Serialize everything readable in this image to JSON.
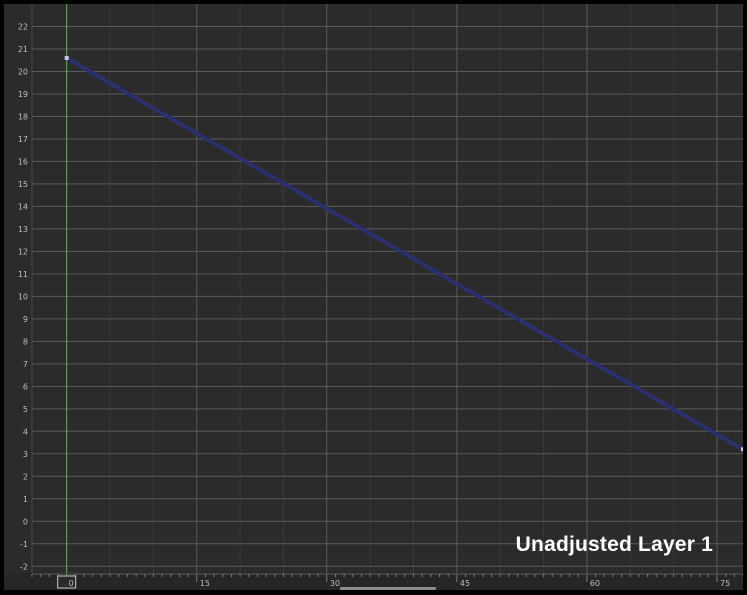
{
  "overlay_label": "Unadjusted Layer 1",
  "colors": {
    "background": "#2b2b2b",
    "grid_major": "#5a5a5a",
    "grid_minor": "#3a3a3a",
    "curve": "#2a2f6e",
    "current_frame": "#56c245",
    "key": "#c8c8e0"
  },
  "chart_data": {
    "type": "line",
    "title": "",
    "xlabel": "",
    "ylabel": "",
    "xlim": [
      -4,
      78
    ],
    "ylim": [
      -2.3,
      23
    ],
    "x_ticks": [
      15,
      30,
      45,
      60,
      75
    ],
    "y_ticks": [
      -2,
      -1,
      0,
      1,
      2,
      3,
      4,
      5,
      6,
      7,
      8,
      9,
      10,
      11,
      12,
      13,
      14,
      15,
      16,
      17,
      18,
      19,
      20,
      21,
      22
    ],
    "current_frame": 0,
    "current_frame_label": "0",
    "grid": true,
    "series": [
      {
        "x": [
          0,
          78
        ],
        "y": [
          20.6,
          3.2
        ]
      }
    ]
  }
}
